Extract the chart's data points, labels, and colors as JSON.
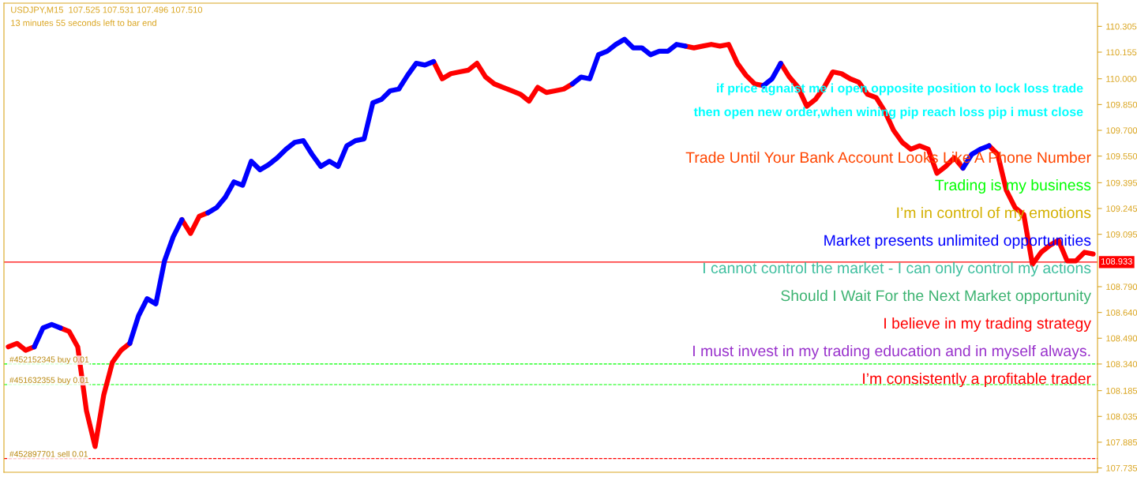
{
  "chart_data": {
    "type": "line",
    "title": "USDJPY,M15  107.525 107.531 107.496 107.510",
    "subtitle": "13 minutes 55 seconds left to bar end",
    "categories": [
      null,
      null,
      null,
      null,
      null,
      null,
      null,
      null,
      null,
      null,
      null,
      null,
      null,
      null,
      null,
      null,
      null,
      null,
      null,
      null,
      null,
      null,
      null,
      null,
      null,
      null,
      null,
      null,
      null,
      null,
      null,
      null,
      null,
      null,
      null,
      null,
      null,
      null,
      null,
      null,
      null,
      null,
      null,
      null,
      null,
      null,
      null,
      null,
      null,
      null,
      null,
      null,
      null,
      null,
      null,
      null,
      null,
      null,
      null,
      null,
      null,
      null,
      null,
      null,
      null,
      null,
      null,
      null,
      null,
      null,
      null,
      null,
      null,
      null,
      null,
      null,
      null,
      null,
      null,
      null,
      null,
      null,
      null,
      null,
      null,
      null,
      null,
      null,
      null,
      null,
      null,
      null,
      null,
      null,
      null,
      null,
      null,
      null,
      null,
      null,
      null,
      null,
      null,
      null,
      null,
      null,
      null,
      null,
      null,
      null,
      null,
      null,
      null,
      null,
      null,
      null,
      null,
      null,
      null,
      null,
      null,
      null,
      null,
      null,
      null,
      null
    ],
    "series": [
      {
        "color": "#ff0000",
        "values": [
          108.44,
          108.46,
          108.42,
          108.44,
          null,
          null,
          108.55,
          108.53,
          108.44,
          108.07,
          107.86,
          108.16,
          108.35,
          108.42,
          108.46,
          null,
          null,
          null,
          null,
          null,
          109.18,
          109.1,
          109.2,
          109.22,
          null,
          null,
          null,
          null,
          null,
          null,
          null,
          null,
          null,
          null,
          null,
          null,
          null,
          null,
          null,
          null,
          null,
          null,
          null,
          null,
          null,
          null,
          null,
          null,
          null,
          110.1,
          110.0,
          110.03,
          110.04,
          110.05,
          110.09,
          110.01,
          109.97,
          109.95,
          109.93,
          109.91,
          109.87,
          109.95,
          109.92,
          109.93,
          109.94,
          109.97,
          null,
          null,
          null,
          null,
          null,
          null,
          null,
          null,
          null,
          null,
          null,
          null,
          110.19,
          110.18,
          110.19,
          110.2,
          110.19,
          110.2,
          110.09,
          110.02,
          109.97,
          109.96,
          null,
          110.09,
          110.01,
          109.95,
          109.84,
          109.88,
          109.95,
          110.04,
          110.03,
          110.0,
          109.98,
          109.91,
          109.89,
          109.81,
          109.7,
          109.63,
          109.59,
          109.61,
          109.59,
          109.45,
          109.49,
          109.54,
          109.48,
          null,
          null,
          109.61,
          109.56,
          109.35,
          109.25,
          109.21,
          108.92,
          108.99,
          109.03,
          109.06,
          108.94,
          108.94,
          108.99,
          108.98
        ]
      },
      {
        "color": "#0000ff",
        "values": [
          null,
          null,
          null,
          108.44,
          108.55,
          108.57,
          108.55,
          null,
          null,
          null,
          null,
          null,
          null,
          null,
          108.46,
          108.62,
          108.72,
          108.69,
          108.94,
          109.08,
          109.18,
          null,
          null,
          109.22,
          109.25,
          109.31,
          109.4,
          109.38,
          109.52,
          109.47,
          109.5,
          109.54,
          109.59,
          109.63,
          109.64,
          109.56,
          109.49,
          109.52,
          109.49,
          109.61,
          109.64,
          109.65,
          109.86,
          109.88,
          109.93,
          109.94,
          110.02,
          110.09,
          110.08,
          110.1,
          null,
          null,
          null,
          null,
          null,
          null,
          null,
          null,
          null,
          null,
          null,
          null,
          null,
          null,
          null,
          109.97,
          110.01,
          110.0,
          110.14,
          110.16,
          110.2,
          110.23,
          110.18,
          110.18,
          110.14,
          110.16,
          110.16,
          110.2,
          110.19,
          null,
          null,
          null,
          null,
          null,
          null,
          null,
          null,
          109.96,
          110.0,
          110.09,
          null,
          null,
          null,
          null,
          null,
          null,
          null,
          null,
          null,
          null,
          null,
          null,
          null,
          null,
          null,
          null,
          null,
          null,
          null,
          null,
          109.48,
          109.56,
          109.59,
          109.61,
          null,
          null,
          null,
          null,
          null,
          null,
          null,
          null,
          null,
          null,
          null,
          null
        ]
      }
    ],
    "ylim": [
      107.71,
      110.44
    ],
    "yticks": [
      107.735,
      107.885,
      108.035,
      108.185,
      {
        "value": 108.34,
        "label": "108.340"
      },
      {
        "value": 108.49,
        "label": "108.490"
      },
      {
        "value": 108.64,
        "label": "108.640"
      },
      {
        "value": 108.79,
        "label": "108.790"
      },
      109.095,
      109.245,
      109.395,
      {
        "value": 109.55,
        "label": "109.550"
      },
      {
        "value": 109.7,
        "label": "109.700"
      },
      {
        "value": 109.85,
        "label": "109.850"
      },
      {
        "value": 110.0,
        "label": "110.000"
      },
      110.155,
      110.305
    ],
    "ref_lines": [
      {
        "axis": "y",
        "value": 108.933,
        "label": "108.933",
        "color": "#ff0000",
        "line_style": "solid"
      },
      {
        "axis": "y",
        "value": 108.34,
        "label": "#452152345 buy 0.01",
        "color": "#00ff00",
        "line_style": "dashed"
      },
      {
        "axis": "y",
        "value": 108.22,
        "label": "#451632355 buy 0.01",
        "color": "#00ff00",
        "line_style": "dashed"
      },
      {
        "axis": "y",
        "value": 107.79,
        "label": "#452897701 sell 0.01",
        "color": "#ff0000",
        "line_style": "dashed"
      }
    ],
    "annotations": [
      "if price agnaist me i open opposite position to lock loss trade",
      "then open new order,when wining pip reach loss pip i must close",
      "Trade Until Your Bank Account Looks Like A Phone Number",
      "Trading is my business",
      "I’m in control of my emotions",
      "Market presents unlimited opportunities",
      "I cannot control the market - I can only control my actions",
      "Should I Wait For the Next Market opportunity",
      "I believe in my trading strategy",
      "I must invest in my trading education and in myself always.",
      "I’m consistently a profitable trader"
    ],
    "tick_labels": "y",
    "grid": false,
    "legend": false,
    "marker": "none",
    "line_style": "solid"
  }
}
